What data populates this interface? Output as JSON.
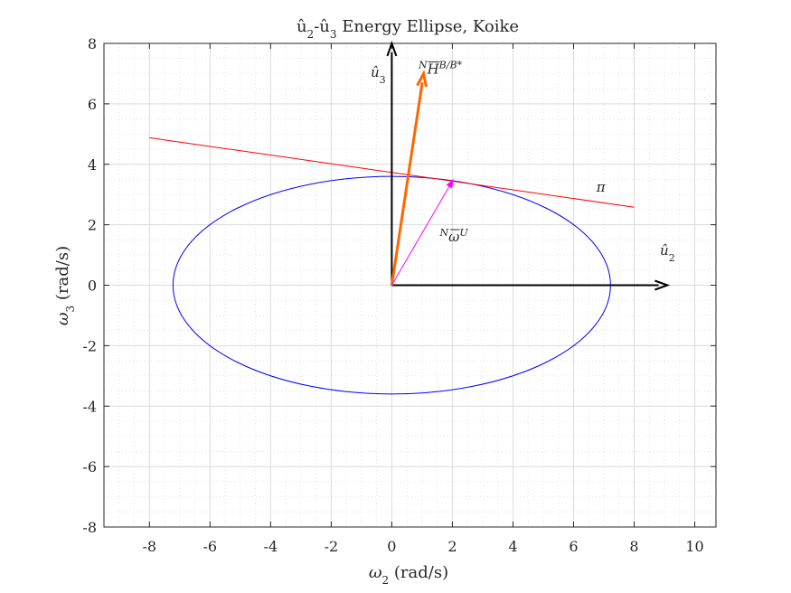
{
  "chart_data": {
    "type": "line",
    "title": {
      "prefix": "û",
      "sub1": "2",
      "mid": "-û",
      "sub2": "3",
      "suffix": " Energy Ellipse, Koike"
    },
    "xlabel": {
      "symbol": "ω",
      "sub": "2",
      "unit": " (rad/s)"
    },
    "ylabel": {
      "symbol": "ω",
      "sub": "3",
      "unit": " (rad/s)"
    },
    "xlim": [
      -9.5,
      10.7
    ],
    "ylim": [
      -8,
      8
    ],
    "xticks": [
      -8,
      -6,
      -4,
      -2,
      0,
      2,
      4,
      6,
      8,
      10
    ],
    "yticks": [
      -8,
      -6,
      -4,
      -2,
      0,
      2,
      4,
      6,
      8
    ],
    "xtick_labels": [
      "-8",
      "-6",
      "-4",
      "-2",
      "0",
      "2",
      "4",
      "6",
      "8",
      "10"
    ],
    "ytick_labels": [
      "-8",
      "-6",
      "-4",
      "-2",
      "0",
      "2",
      "4",
      "6",
      "8"
    ],
    "grid": true,
    "minor_grid": true,
    "series": [
      {
        "kind": "ellipse",
        "center": [
          0,
          0
        ],
        "semi_axes": [
          7.22,
          3.6
        ],
        "color": "#0000ff"
      },
      {
        "kind": "line",
        "points": [
          [
            -8,
            4.88
          ],
          [
            8,
            2.58
          ]
        ],
        "color": "#ff0000"
      }
    ],
    "vectors": [
      {
        "from": [
          0,
          0
        ],
        "to": [
          9.1,
          0
        ],
        "color": "#000000",
        "width": 2
      },
      {
        "from": [
          0,
          0
        ],
        "to": [
          0,
          8.0
        ],
        "color": "#000000",
        "width": 2
      },
      {
        "from": [
          0,
          0
        ],
        "to": [
          1.05,
          7.0
        ],
        "color": "#ff6600",
        "width": 3
      },
      {
        "from": [
          0,
          0
        ],
        "to": [
          2.02,
          3.48
        ],
        "color": "#ff00ff",
        "width": 1
      }
    ],
    "annotations": [
      {
        "base": "û",
        "sub": "2",
        "sup": "",
        "pre": "",
        "x": 9.1,
        "y": 1.0
      },
      {
        "base": "û",
        "sub": "3",
        "sup": "",
        "pre": "",
        "x": -0.45,
        "y": 6.9
      },
      {
        "base": "H",
        "sub": "",
        "sup": "B/B*",
        "pre": "N",
        "x": 1.6,
        "y": 7.0
      },
      {
        "base": "ω",
        "sub": "",
        "sup": "U",
        "pre": "N",
        "x": 2.05,
        "y": 1.45
      },
      {
        "base": "π",
        "sub": "",
        "sup": "",
        "pre": "",
        "x": 6.9,
        "y": 3.1
      }
    ]
  }
}
